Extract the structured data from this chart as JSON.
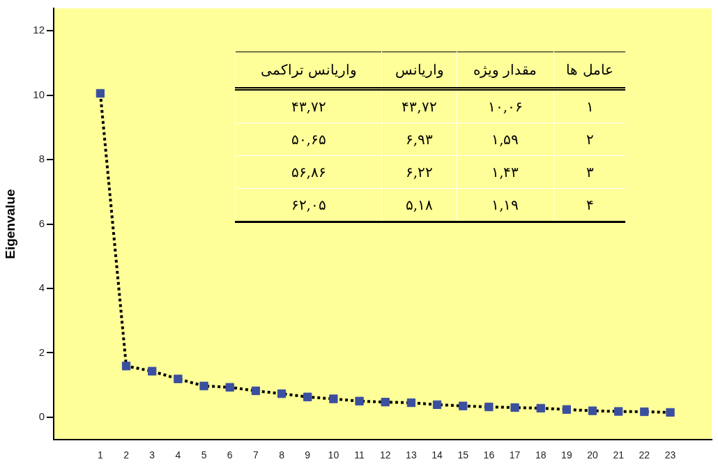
{
  "chart_data": {
    "type": "line",
    "ylabel": "Eigenvalue",
    "x": [
      1,
      2,
      3,
      4,
      5,
      6,
      7,
      8,
      9,
      10,
      11,
      12,
      13,
      14,
      15,
      16,
      17,
      18,
      19,
      20,
      21,
      22,
      23
    ],
    "series": [
      {
        "color": "#3b4fa0",
        "values": [
          10.06,
          1.59,
          1.43,
          1.19,
          0.97,
          0.93,
          0.82,
          0.73,
          0.63,
          0.57,
          0.5,
          0.47,
          0.45,
          0.39,
          0.35,
          0.32,
          0.3,
          0.28,
          0.24,
          0.2,
          0.18,
          0.17,
          0.15
        ]
      }
    ],
    "xlim": [
      -0.8,
      24.6
    ],
    "xticks": [
      1,
      2,
      3,
      4,
      5,
      6,
      7,
      8,
      9,
      10,
      11,
      12,
      13,
      14,
      15,
      16,
      17,
      18,
      19,
      20,
      21,
      22,
      23
    ],
    "ylim": [
      -0.7,
      12.7
    ],
    "yticks": [
      0,
      2,
      4,
      6,
      8,
      10,
      12
    ],
    "marker": "square",
    "line_style": "dotted",
    "annotations": [
      "عامل ها",
      "مقدار ویژه",
      "واریانس",
      "واریانس تراکمی",
      "۱",
      "۱۰,۰۶",
      "۴۳,۷۲",
      "۴۳,۷۲",
      "۲",
      "۱,۵۹",
      "۶,۹۳",
      "۵۰,۶۵",
      "۳",
      "۱,۴۳",
      "۶,۲۲",
      "۵۶,۸۶",
      "۴",
      "۱,۱۹",
      "۵,۱۸",
      "۶۲,۰۵"
    ]
  }
}
